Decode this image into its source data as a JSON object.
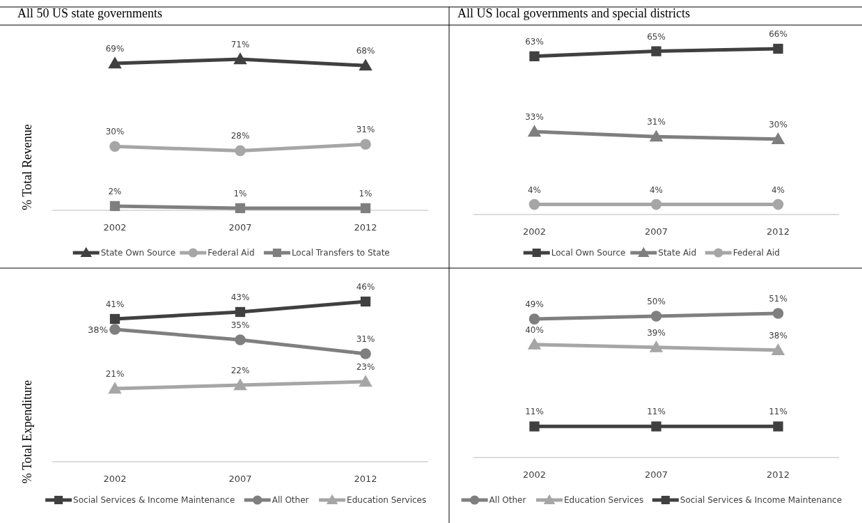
{
  "chart_data": [
    {
      "type": "line",
      "title": "All 50 US state governments",
      "ylabel": "% Total Revenue",
      "categories": [
        "2002",
        "2007",
        "2012"
      ],
      "legend": "bottom",
      "grid": false,
      "series": [
        {
          "name": "State Own Source",
          "color": "#404040",
          "marker": "triangle",
          "values": [
            69,
            71,
            68
          ],
          "value_labels": [
            "69%",
            "71%",
            "68%"
          ]
        },
        {
          "name": "Federal Aid",
          "color": "#a6a6a6",
          "marker": "circle",
          "values": [
            30,
            28,
            31
          ],
          "value_labels": [
            "30%",
            "28%",
            "31%"
          ]
        },
        {
          "name": "Local Transfers to State",
          "color": "#7f7f7f",
          "marker": "square",
          "values": [
            2,
            1,
            1
          ],
          "value_labels": [
            "2%",
            "1%",
            "1%"
          ]
        }
      ]
    },
    {
      "type": "line",
      "title": "All US local governments and special districts",
      "categories": [
        "2002",
        "2007",
        "2012"
      ],
      "legend": "bottom",
      "grid": false,
      "series": [
        {
          "name": "Local Own Source",
          "color": "#404040",
          "marker": "square",
          "values": [
            63,
            65,
            66
          ],
          "value_labels": [
            "63%",
            "65%",
            "66%"
          ]
        },
        {
          "name": "State Aid",
          "color": "#7f7f7f",
          "marker": "triangle",
          "values": [
            33,
            31,
            30
          ],
          "value_labels": [
            "33%",
            "31%",
            "30%"
          ]
        },
        {
          "name": "Federal Aid",
          "color": "#a6a6a6",
          "marker": "circle",
          "values": [
            4,
            4,
            4
          ],
          "value_labels": [
            "4%",
            "4%",
            "4%"
          ]
        }
      ]
    },
    {
      "type": "line",
      "ylabel": "% Total Expenditure",
      "categories": [
        "2002",
        "2007",
        "2012"
      ],
      "legend": "bottom",
      "grid": false,
      "series": [
        {
          "name": "Social Services & Income Maintenance",
          "color": "#404040",
          "marker": "square",
          "values": [
            41,
            43,
            46
          ],
          "value_labels": [
            "41%",
            "43%",
            "46%"
          ]
        },
        {
          "name": "All Other",
          "color": "#7f7f7f",
          "marker": "circle",
          "values": [
            38,
            35,
            31
          ],
          "value_labels": [
            "38%",
            "35%",
            "31%"
          ]
        },
        {
          "name": "Education Services",
          "color": "#a6a6a6",
          "marker": "triangle",
          "values": [
            21,
            22,
            23
          ],
          "value_labels": [
            "21%",
            "22%",
            "23%"
          ]
        }
      ]
    },
    {
      "type": "line",
      "categories": [
        "2002",
        "2007",
        "2012"
      ],
      "legend": "bottom",
      "grid": false,
      "series": [
        {
          "name": "All Other",
          "color": "#7f7f7f",
          "marker": "circle",
          "values": [
            49,
            50,
            51
          ],
          "value_labels": [
            "49%",
            "50%",
            "51%"
          ]
        },
        {
          "name": "Education Services",
          "color": "#a6a6a6",
          "marker": "triangle",
          "values": [
            40,
            39,
            38
          ],
          "value_labels": [
            "40%",
            "39%",
            "38%"
          ]
        },
        {
          "name": "Social Services & Income Maintenance",
          "color": "#404040",
          "marker": "square",
          "values": [
            11,
            11,
            11
          ],
          "value_labels": [
            "11%",
            "11%",
            "11%"
          ]
        }
      ]
    }
  ]
}
